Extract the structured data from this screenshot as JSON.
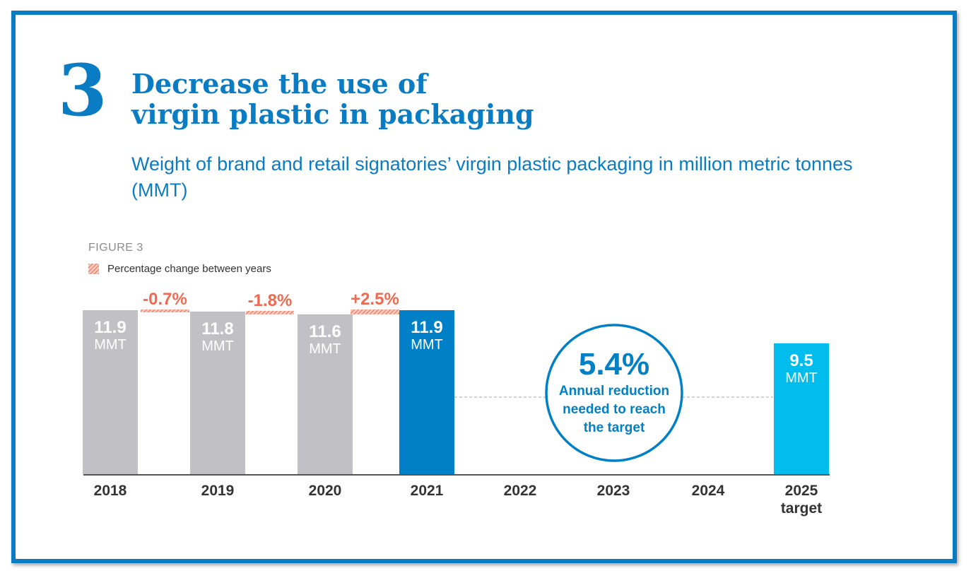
{
  "header": {
    "number": "3",
    "title_line1": "Decrease the use of",
    "title_line2": "virgin plastic in packaging",
    "subtitle": "Weight of brand and retail signatories’ virgin plastic packaging in million metric tonnes (MMT)"
  },
  "figure_label": "FIGURE 3",
  "colors": {
    "brand": "#0a7cc4",
    "gray_bar": "#c1c1c5",
    "current_bar": "#0080c6",
    "target_bar": "#00bdee",
    "change": "#ef6a50"
  },
  "chart_data": {
    "type": "bar",
    "categories": [
      "2018",
      "2019",
      "2020",
      "2021",
      "2022",
      "2023",
      "2024",
      "2025 target"
    ],
    "unit": "MMT",
    "series": [
      {
        "values": [
          11.9,
          11.8,
          11.6,
          11.9,
          null,
          null,
          null,
          9.5
        ]
      }
    ],
    "value_labels": [
      "11.9",
      "11.8",
      "11.6",
      "11.9",
      "",
      "",
      "",
      "9.5"
    ],
    "changes": [
      {
        "between": [
          "2018",
          "2019"
        ],
        "label": "-0.7%"
      },
      {
        "between": [
          "2019",
          "2020"
        ],
        "label": "-1.8%"
      },
      {
        "between": [
          "2020",
          "2021"
        ],
        "label": "+2.5%"
      }
    ],
    "legend": [
      {
        "label": "Percentage change between years"
      }
    ],
    "annotation": {
      "value": "5.4%",
      "line1": "Annual reduction",
      "line2": "needed to reach",
      "line3": "the target"
    },
    "ylim": [
      0,
      11.9
    ]
  }
}
